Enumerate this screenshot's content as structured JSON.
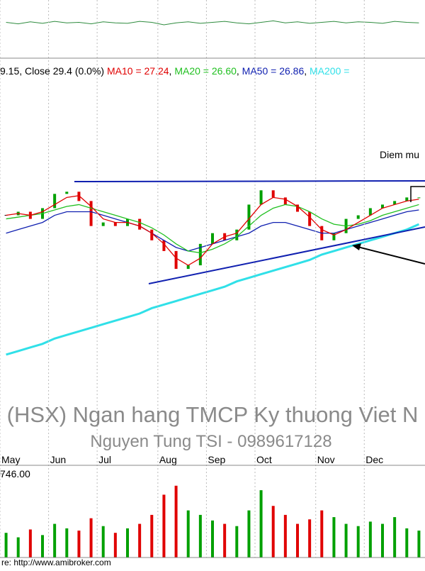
{
  "chart_data": {
    "type": "candlestick",
    "categories": [
      "May",
      null,
      null,
      null,
      "Jun",
      null,
      null,
      null,
      "Jul",
      null,
      null,
      null,
      null,
      "Aug",
      null,
      null,
      null,
      "Sep",
      null,
      null,
      null,
      "Oct",
      null,
      null,
      null,
      null,
      "Nov",
      null,
      null,
      null,
      "Dec",
      null,
      null,
      null,
      null
    ],
    "ylim": [
      14.4,
      37.2
    ],
    "grid": true,
    "series": [
      {
        "name": "9.15, Close 29.4 (0.0%)",
        "color": "#000000",
        "up_color": "#00a000",
        "down_color": "#e00000",
        "values": [
          28.4,
          28.6,
          28.2,
          28.8,
          29.6,
          29.72,
          29.2,
          27.8,
          28.0,
          27.8,
          28.2,
          27.6,
          27.0,
          26.4,
          25.4,
          25.6,
          26.8,
          27.4,
          27.0,
          27.6,
          29.0,
          29.8,
          29.4,
          29.0,
          28.6,
          27.8,
          27.0,
          27.4,
          28.2,
          28.4,
          28.8,
          29.0,
          29.2,
          29.4,
          29.4
        ]
      },
      {
        "name": "MA10 = 27.24",
        "color": "#e00000",
        "values": [
          28.4,
          28.5,
          28.4,
          28.6,
          29.0,
          29.4,
          29.5,
          28.9,
          28.2,
          28.0,
          28.0,
          27.8,
          27.4,
          26.8,
          26.0,
          25.6,
          26.0,
          26.8,
          27.2,
          27.4,
          28.2,
          29.0,
          29.4,
          29.3,
          28.9,
          28.3,
          27.6,
          27.3,
          27.6,
          28.0,
          28.4,
          28.8,
          29.0,
          29.2,
          29.3
        ]
      },
      {
        "name": "MA20 = 26.60",
        "color": "#20c020",
        "values": [
          28.2,
          28.3,
          28.4,
          28.5,
          28.7,
          28.9,
          29.0,
          28.8,
          28.6,
          28.4,
          28.2,
          28.0,
          27.7,
          27.3,
          26.8,
          26.4,
          26.3,
          26.5,
          26.8,
          27.2,
          27.8,
          28.4,
          28.8,
          29.0,
          28.9,
          28.6,
          28.2,
          27.9,
          27.8,
          27.9,
          28.1,
          28.4,
          28.6,
          28.8,
          29.0
        ]
      },
      {
        "name": "MA50 = 26.86",
        "color": "#1020b0",
        "values": [
          27.4,
          27.6,
          27.8,
          28.0,
          28.4,
          28.6,
          28.6,
          28.6,
          28.4,
          28.2,
          28.0,
          27.8,
          27.4,
          27.0,
          26.6,
          26.4,
          26.6,
          26.8,
          27.0,
          27.2,
          27.4,
          27.8,
          28.0,
          28.0,
          27.8,
          27.6,
          27.4,
          27.4,
          27.6,
          27.8,
          28.0,
          28.2,
          28.4,
          28.6,
          28.7
        ]
      },
      {
        "name": "MA200 =",
        "color": "#30e0e8",
        "values": [
          20.6,
          20.8,
          21.0,
          21.2,
          21.5,
          21.7,
          21.9,
          22.1,
          22.3,
          22.5,
          22.7,
          22.9,
          23.2,
          23.4,
          23.6,
          23.8,
          24.0,
          24.2,
          24.4,
          24.7,
          24.9,
          25.1,
          25.3,
          25.5,
          25.7,
          25.9,
          26.2,
          26.4,
          26.6,
          26.8,
          27.0,
          27.2,
          27.4,
          27.6,
          27.9
        ]
      }
    ],
    "volume": {
      "ylim": [
        0,
        746
      ],
      "yticks": [
        {
          "value": 746,
          "label": "746.00"
        }
      ],
      "values": [
        220,
        180,
        250,
        200,
        300,
        260,
        240,
        350,
        280,
        220,
        260,
        300,
        380,
        560,
        640,
        420,
        380,
        330,
        300,
        280,
        420,
        600,
        460,
        380,
        300,
        340,
        420,
        360,
        300,
        280,
        320,
        300,
        360,
        260,
        240
      ]
    },
    "indicator": {
      "ylim": [
        0,
        100
      ],
      "color": "#2e8b3e",
      "values": [
        55,
        52,
        56,
        53,
        57,
        54,
        55,
        52,
        56,
        54,
        53,
        57,
        55,
        50,
        54,
        56,
        53,
        55,
        57,
        54,
        52,
        55,
        58,
        54,
        56,
        53,
        55,
        57,
        54,
        56,
        55,
        53,
        57,
        55,
        54
      ]
    },
    "annotation": "Diem mu",
    "watermark": "(HSX) Ngan hang TMCP Ky thuong Viet N",
    "author": "Nguyen Tung TSI - 0989617128",
    "footer": "re: http://www.amibroker.com"
  }
}
